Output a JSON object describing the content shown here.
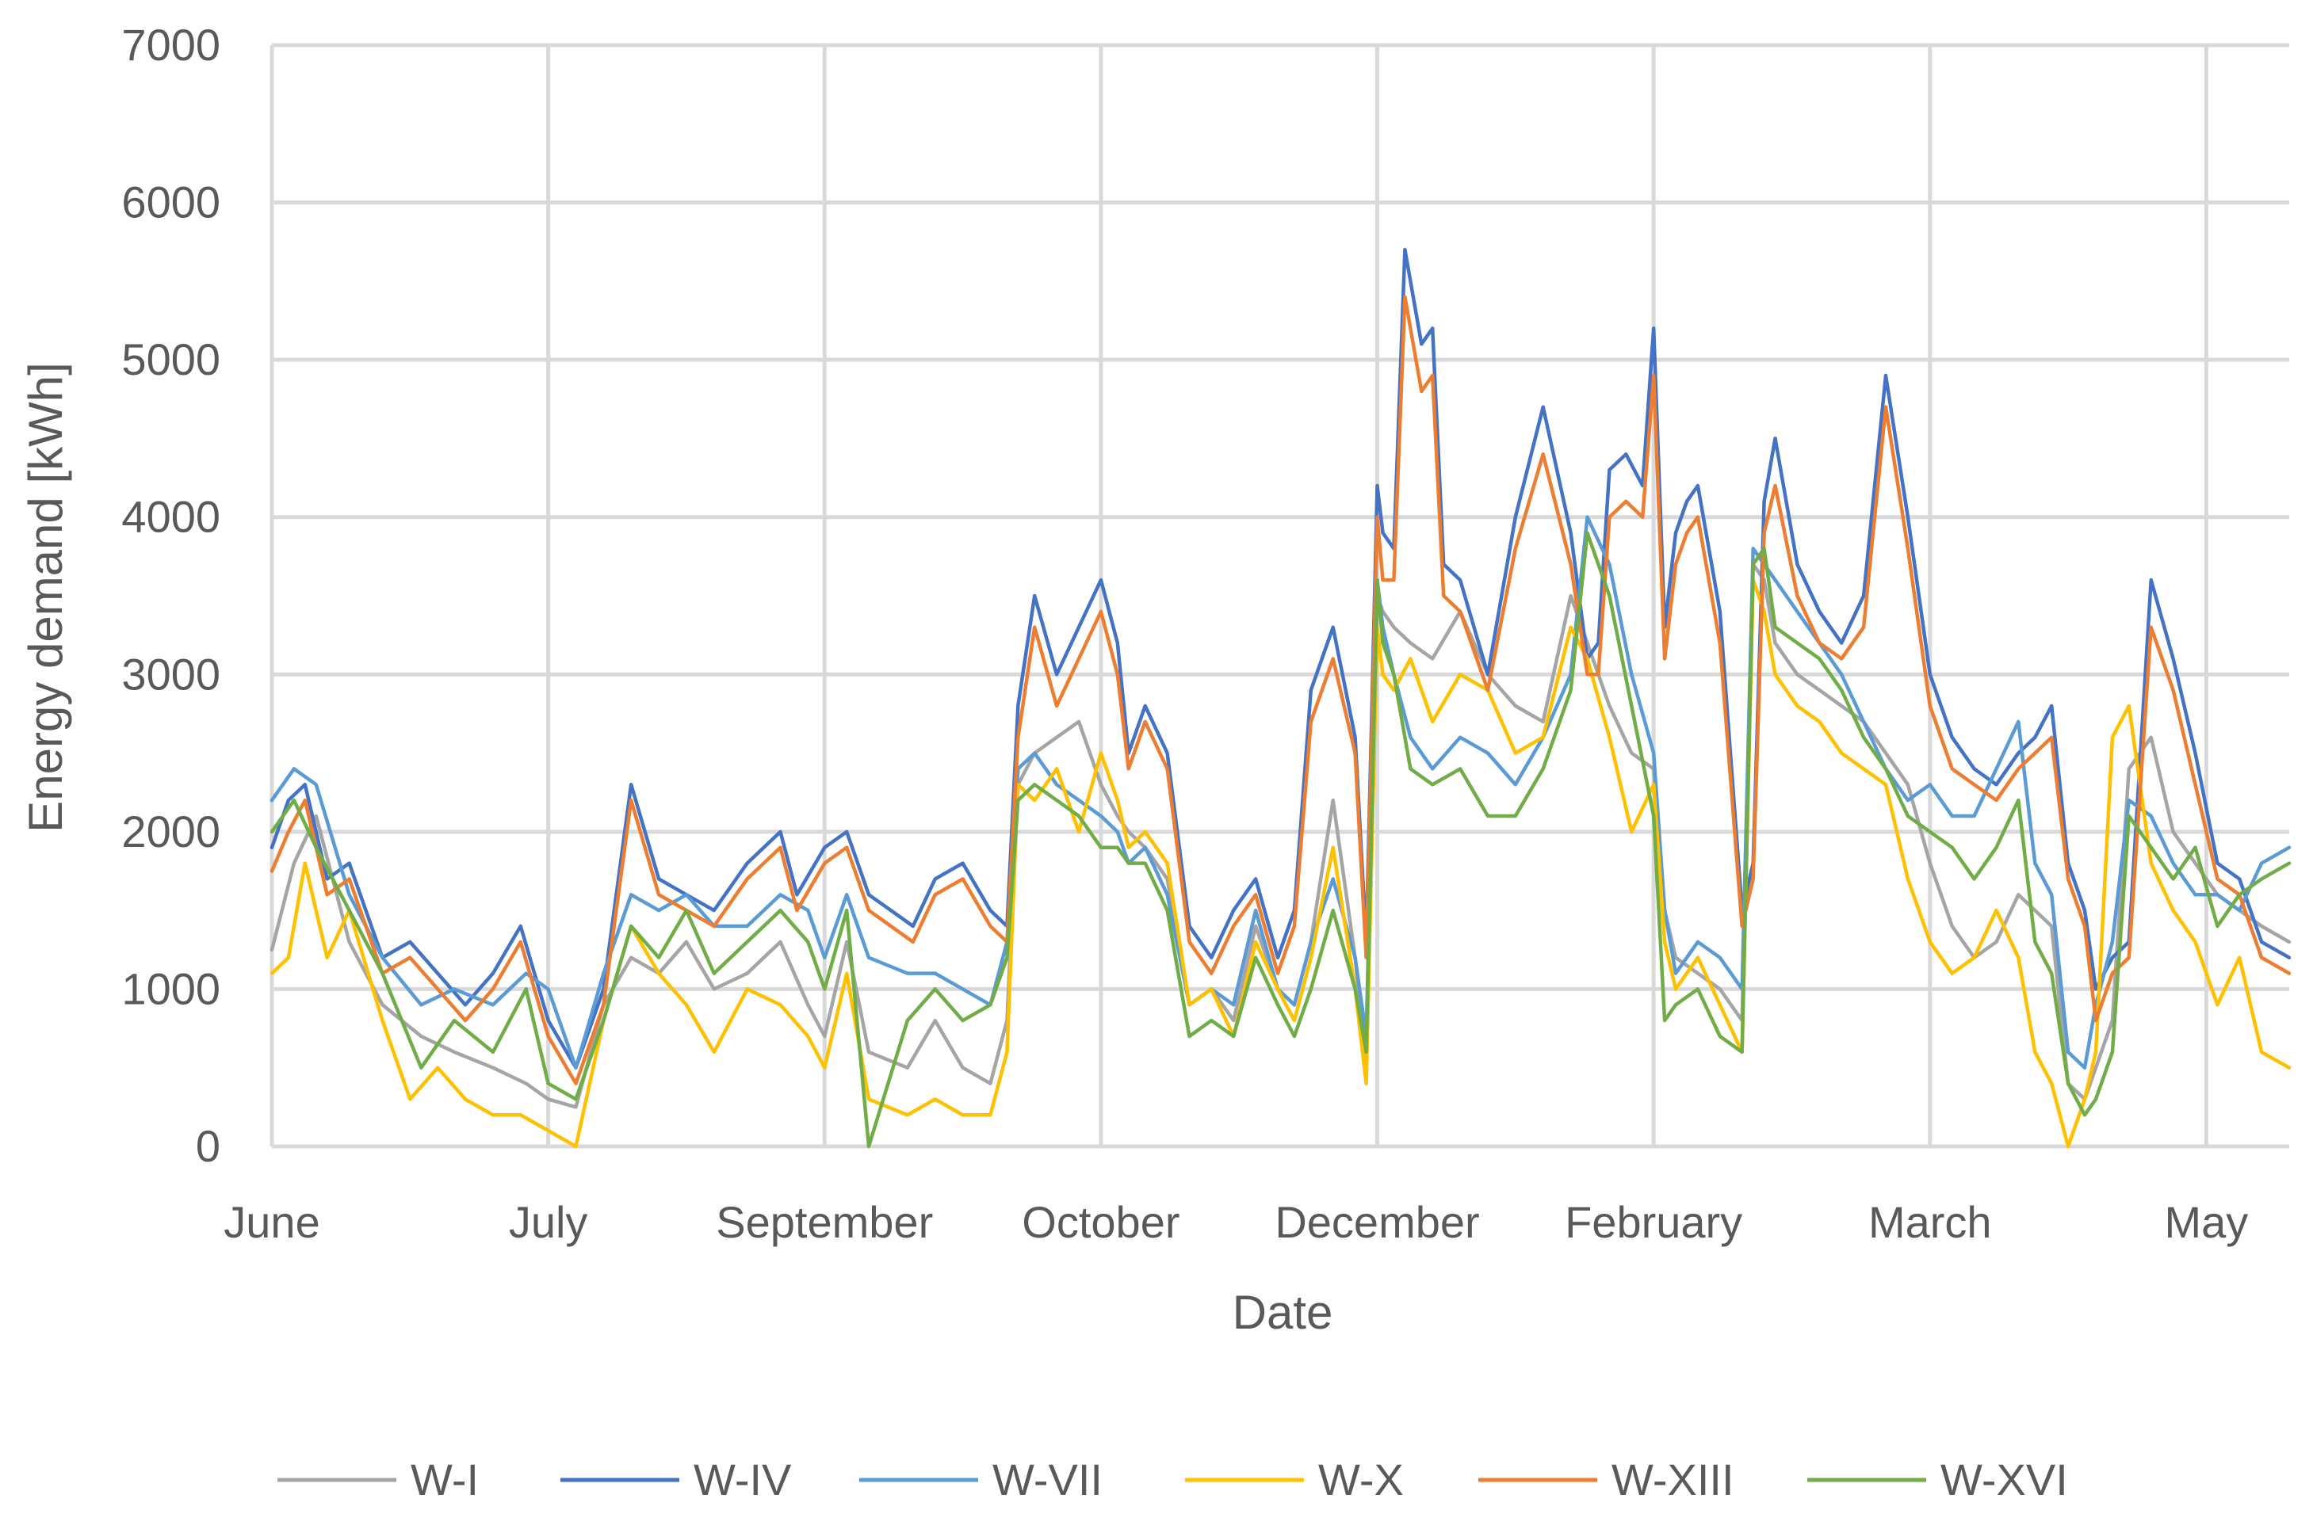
{
  "chart_data": {
    "type": "line",
    "title": "",
    "xlabel": "Date",
    "ylabel": "Energy demand [kWh]",
    "ylim": [
      0,
      7000
    ],
    "yticks": [
      0,
      1000,
      2000,
      3000,
      4000,
      5000,
      6000,
      7000
    ],
    "xlim": [
      0,
      365
    ],
    "x_ticks": [
      {
        "label": "June",
        "day": 0
      },
      {
        "label": "July",
        "day": 50
      },
      {
        "label": "September",
        "day": 100
      },
      {
        "label": "October",
        "day": 150
      },
      {
        "label": "December",
        "day": 200
      },
      {
        "label": "February",
        "day": 250
      },
      {
        "label": "March",
        "day": 300
      },
      {
        "label": "May",
        "day": 350
      }
    ],
    "grid": true,
    "legend_position": "bottom",
    "series": [
      {
        "name": "W-I",
        "color": "#a5a5a5",
        "x": [
          0,
          4,
          8,
          14,
          20,
          27,
          33,
          40,
          46,
          50,
          55,
          60,
          65,
          70,
          75,
          80,
          86,
          92,
          97,
          100,
          104,
          108,
          115,
          120,
          125,
          130,
          133,
          135,
          138,
          142,
          146,
          150,
          153,
          155,
          158,
          162,
          166,
          170,
          174,
          178,
          182,
          185,
          188,
          192,
          196,
          198,
          200,
          201,
          203,
          206,
          210,
          215,
          220,
          225,
          230,
          235,
          238,
          242,
          246,
          250,
          252,
          254,
          258,
          262,
          266,
          268,
          270,
          272,
          276,
          280,
          284,
          288,
          292,
          296,
          300,
          304,
          308,
          312,
          316,
          319,
          322,
          325,
          328,
          330,
          333,
          336,
          340,
          344,
          348,
          352,
          356,
          360,
          365
        ],
        "y": [
          1250,
          1800,
          2100,
          1300,
          900,
          700,
          600,
          500,
          400,
          300,
          250,
          900,
          1200,
          1100,
          1300,
          1000,
          1100,
          1300,
          900,
          700,
          1300,
          600,
          500,
          800,
          500,
          400,
          800,
          2300,
          2500,
          2600,
          2700,
          2300,
          2100,
          2000,
          1900,
          1700,
          900,
          1000,
          800,
          1400,
          1000,
          900,
          1300,
          2200,
          1200,
          500,
          3500,
          3400,
          3300,
          3200,
          3100,
          3400,
          3000,
          2800,
          2700,
          3500,
          3200,
          2800,
          2500,
          2400,
          1500,
          1200,
          1100,
          1000,
          800,
          3700,
          3600,
          3200,
          3000,
          2900,
          2800,
          2700,
          2500,
          2300,
          1800,
          1400,
          1200,
          1300,
          1600,
          1500,
          1400,
          400,
          300,
          500,
          800,
          2400,
          2600,
          2000,
          1800,
          1600,
          1500,
          1400,
          1300
        ]
      },
      {
        "name": "W-IV",
        "color": "#4472c4",
        "x": [
          0,
          3,
          6,
          10,
          14,
          20,
          25,
          30,
          35,
          40,
          45,
          50,
          55,
          60,
          65,
          70,
          75,
          80,
          86,
          92,
          95,
          100,
          104,
          108,
          112,
          116,
          120,
          125,
          130,
          133,
          135,
          138,
          142,
          146,
          150,
          153,
          155,
          158,
          162,
          166,
          170,
          174,
          178,
          182,
          185,
          188,
          192,
          196,
          198,
          200,
          201,
          203,
          205,
          208,
          210,
          212,
          215,
          220,
          225,
          230,
          235,
          238,
          240,
          242,
          245,
          248,
          250,
          252,
          254,
          256,
          258,
          262,
          266,
          268,
          270,
          272,
          276,
          280,
          284,
          288,
          292,
          296,
          300,
          304,
          308,
          312,
          316,
          319,
          322,
          325,
          328,
          330,
          333,
          336,
          340,
          344,
          348,
          352,
          356,
          360,
          365
        ],
        "y": [
          1900,
          2200,
          2300,
          1700,
          1800,
          1200,
          1300,
          1100,
          900,
          1100,
          1400,
          800,
          500,
          1000,
          2300,
          1700,
          1600,
          1500,
          1800,
          2000,
          1600,
          1900,
          2000,
          1600,
          1500,
          1400,
          1700,
          1800,
          1500,
          1400,
          2800,
          3500,
          3000,
          3300,
          3600,
          3200,
          2500,
          2800,
          2500,
          1400,
          1200,
          1500,
          1700,
          1200,
          1500,
          2900,
          3300,
          2600,
          1300,
          4200,
          3900,
          3800,
          5700,
          5100,
          5200,
          3700,
          3600,
          3000,
          4000,
          4700,
          3900,
          3100,
          3200,
          4300,
          4400,
          4200,
          5200,
          3300,
          3900,
          4100,
          4200,
          3400,
          1500,
          1800,
          4100,
          4500,
          3700,
          3400,
          3200,
          3500,
          4900,
          4000,
          3000,
          2600,
          2400,
          2300,
          2500,
          2600,
          2800,
          1800,
          1500,
          1000,
          1200,
          1300,
          3600,
          3100,
          2500,
          1800,
          1700,
          1300,
          1200
        ]
      },
      {
        "name": "W-VII",
        "color": "#5b9bd5",
        "x": [
          0,
          4,
          8,
          14,
          20,
          27,
          33,
          40,
          46,
          50,
          55,
          60,
          65,
          70,
          75,
          80,
          86,
          92,
          97,
          100,
          104,
          108,
          115,
          120,
          125,
          130,
          133,
          135,
          138,
          142,
          146,
          150,
          153,
          155,
          158,
          162,
          166,
          170,
          174,
          178,
          182,
          185,
          188,
          192,
          196,
          198,
          200,
          201,
          203,
          206,
          210,
          215,
          220,
          225,
          230,
          235,
          238,
          242,
          246,
          250,
          252,
          254,
          258,
          262,
          266,
          268,
          270,
          272,
          276,
          280,
          284,
          288,
          292,
          296,
          300,
          304,
          308,
          312,
          316,
          319,
          322,
          325,
          328,
          330,
          333,
          336,
          340,
          344,
          348,
          352,
          356,
          360,
          365
        ],
        "y": [
          2200,
          2400,
          2300,
          1600,
          1200,
          900,
          1000,
          900,
          1100,
          1000,
          500,
          1100,
          1600,
          1500,
          1600,
          1400,
          1400,
          1600,
          1500,
          1200,
          1600,
          1200,
          1100,
          1100,
          1000,
          900,
          1300,
          2400,
          2500,
          2300,
          2200,
          2100,
          2000,
          1800,
          1900,
          1600,
          900,
          1000,
          900,
          1500,
          1000,
          900,
          1300,
          1700,
          1200,
          700,
          3600,
          3300,
          3000,
          2600,
          2400,
          2600,
          2500,
          2300,
          2600,
          3000,
          4000,
          3700,
          3000,
          2500,
          1500,
          1100,
          1300,
          1200,
          1000,
          3800,
          3700,
          3600,
          3400,
          3200,
          3000,
          2700,
          2400,
          2200,
          2300,
          2100,
          2100,
          2400,
          2700,
          1800,
          1600,
          600,
          500,
          900,
          1300,
          2200,
          2100,
          1800,
          1600,
          1600,
          1500,
          1800,
          1900
        ]
      },
      {
        "name": "W-X",
        "color": "#ffc000",
        "x": [
          0,
          3,
          6,
          10,
          14,
          20,
          25,
          30,
          35,
          40,
          45,
          50,
          55,
          60,
          65,
          70,
          75,
          80,
          86,
          92,
          97,
          100,
          104,
          108,
          115,
          120,
          125,
          130,
          133,
          135,
          138,
          142,
          146,
          150,
          153,
          155,
          158,
          162,
          166,
          170,
          174,
          178,
          182,
          185,
          188,
          192,
          196,
          198,
          200,
          201,
          203,
          206,
          210,
          215,
          220,
          225,
          230,
          235,
          238,
          242,
          246,
          250,
          252,
          254,
          258,
          262,
          266,
          268,
          270,
          272,
          276,
          280,
          284,
          288,
          292,
          296,
          300,
          304,
          308,
          312,
          316,
          319,
          322,
          325,
          328,
          330,
          333,
          336,
          340,
          344,
          348,
          352,
          356,
          360,
          365
        ],
        "y": [
          1100,
          1200,
          1800,
          1200,
          1500,
          800,
          300,
          500,
          300,
          200,
          200,
          100,
          0,
          800,
          1400,
          1100,
          900,
          600,
          1000,
          900,
          700,
          500,
          1100,
          300,
          200,
          300,
          200,
          200,
          600,
          2300,
          2200,
          2400,
          2000,
          2500,
          2200,
          1900,
          2000,
          1800,
          900,
          1000,
          700,
          1300,
          1000,
          800,
          1200,
          1900,
          1000,
          400,
          3300,
          3000,
          2900,
          3100,
          2700,
          3000,
          2900,
          2500,
          2600,
          3300,
          3100,
          2600,
          2000,
          2300,
          1300,
          1000,
          1200,
          900,
          600,
          3600,
          3400,
          3000,
          2800,
          2700,
          2500,
          2400,
          2300,
          1700,
          1300,
          1100,
          1200,
          1500,
          1200,
          600,
          400,
          0,
          300,
          600,
          2600,
          2800,
          1800,
          1500,
          1300,
          900,
          1200,
          600,
          500
        ]
      },
      {
        "name": "W-XIII",
        "color": "#ed7d31",
        "x": [
          0,
          3,
          6,
          10,
          14,
          20,
          25,
          30,
          35,
          40,
          45,
          50,
          55,
          60,
          65,
          70,
          75,
          80,
          86,
          92,
          95,
          100,
          104,
          108,
          112,
          116,
          120,
          125,
          130,
          133,
          135,
          138,
          142,
          146,
          150,
          153,
          155,
          158,
          162,
          166,
          170,
          174,
          178,
          182,
          185,
          188,
          192,
          196,
          198,
          200,
          201,
          203,
          205,
          208,
          210,
          212,
          215,
          220,
          225,
          230,
          235,
          238,
          240,
          242,
          245,
          248,
          250,
          252,
          254,
          256,
          258,
          262,
          266,
          268,
          270,
          272,
          276,
          280,
          284,
          288,
          292,
          296,
          300,
          304,
          308,
          312,
          316,
          319,
          322,
          325,
          328,
          330,
          333,
          336,
          340,
          344,
          348,
          352,
          356,
          360,
          365
        ],
        "y": [
          1750,
          2000,
          2200,
          1600,
          1700,
          1100,
          1200,
          1000,
          800,
          1000,
          1300,
          700,
          400,
          900,
          2200,
          1600,
          1500,
          1400,
          1700,
          1900,
          1500,
          1800,
          1900,
          1500,
          1400,
          1300,
          1600,
          1700,
          1400,
          1300,
          2600,
          3300,
          2800,
          3100,
          3400,
          3000,
          2400,
          2700,
          2400,
          1300,
          1100,
          1400,
          1600,
          1100,
          1400,
          2700,
          3100,
          2500,
          1200,
          4000,
          3600,
          3600,
          5400,
          4800,
          4900,
          3500,
          3400,
          2900,
          3800,
          4400,
          3700,
          3000,
          3000,
          4000,
          4100,
          4000,
          4900,
          3100,
          3700,
          3900,
          4000,
          3200,
          1400,
          1700,
          3900,
          4200,
          3500,
          3200,
          3100,
          3300,
          4700,
          3800,
          2800,
          2400,
          2300,
          2200,
          2400,
          2500,
          2600,
          1700,
          1400,
          800,
          1100,
          1200,
          3300,
          2900,
          2300,
          1700,
          1600,
          1200,
          1100
        ]
      },
      {
        "name": "W-XVI",
        "color": "#70ad47",
        "x": [
          0,
          4,
          8,
          14,
          20,
          27,
          33,
          40,
          46,
          50,
          55,
          60,
          65,
          70,
          75,
          80,
          86,
          92,
          97,
          100,
          104,
          108,
          115,
          120,
          125,
          130,
          133,
          135,
          138,
          142,
          146,
          150,
          153,
          155,
          158,
          162,
          166,
          170,
          174,
          178,
          182,
          185,
          188,
          192,
          196,
          198,
          200,
          201,
          203,
          206,
          210,
          215,
          220,
          225,
          230,
          235,
          238,
          242,
          246,
          250,
          252,
          254,
          258,
          262,
          266,
          268,
          270,
          272,
          276,
          280,
          284,
          288,
          292,
          296,
          300,
          304,
          308,
          312,
          316,
          319,
          322,
          325,
          328,
          330,
          333,
          336,
          340,
          344,
          348,
          352,
          356,
          360,
          365
        ],
        "y": [
          2000,
          2200,
          1900,
          1500,
          1100,
          500,
          800,
          600,
          1000,
          400,
          300,
          800,
          1400,
          1200,
          1500,
          1100,
          1300,
          1500,
          1300,
          1000,
          1500,
          0,
          800,
          1000,
          800,
          900,
          1200,
          2200,
          2300,
          2200,
          2100,
          1900,
          1900,
          1800,
          1800,
          1500,
          700,
          800,
          700,
          1200,
          900,
          700,
          1000,
          1500,
          1000,
          600,
          3600,
          3200,
          3000,
          2400,
          2300,
          2400,
          2100,
          2100,
          2400,
          2900,
          3900,
          3500,
          2800,
          2100,
          800,
          900,
          1000,
          700,
          600,
          3700,
          3800,
          3300,
          3200,
          3100,
          2900,
          2600,
          2400,
          2100,
          2000,
          1900,
          1700,
          1900,
          2200,
          1300,
          1100,
          400,
          200,
          300,
          600,
          2100,
          1900,
          1700,
          1900,
          1400,
          1600,
          1700,
          1800
        ]
      }
    ]
  }
}
